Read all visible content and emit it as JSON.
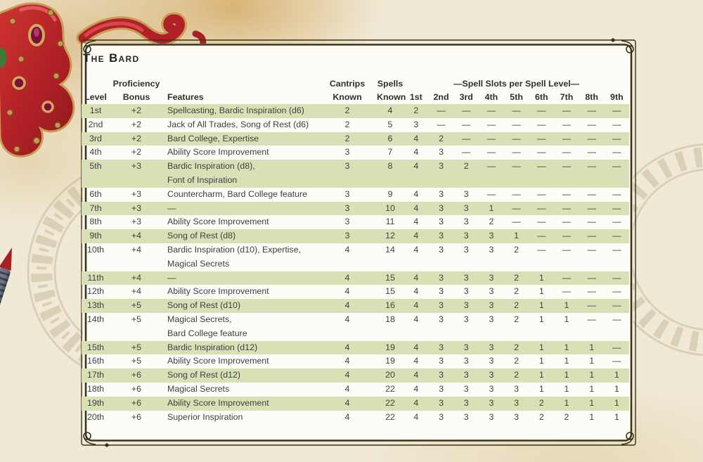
{
  "page": {
    "title": "The Bard"
  },
  "table": {
    "slots_banner": "—Spell Slots per Spell Level—",
    "columns": [
      {
        "id": "level",
        "align": "center",
        "lines": [
          "Level"
        ]
      },
      {
        "id": "prof",
        "align": "center",
        "lines": [
          "Proficiency",
          "Bonus"
        ]
      },
      {
        "id": "features",
        "align": "left",
        "lines": [
          "Features"
        ]
      },
      {
        "id": "cantrips",
        "align": "center",
        "lines": [
          "Cantrips",
          "Known"
        ]
      },
      {
        "id": "spells",
        "align": "center",
        "lines": [
          "Spells",
          "Known"
        ]
      },
      {
        "id": "slot1",
        "align": "center",
        "lines": [
          "1st"
        ]
      },
      {
        "id": "slot2",
        "align": "center",
        "lines": [
          "2nd"
        ]
      },
      {
        "id": "slot3",
        "align": "center",
        "lines": [
          "3rd"
        ]
      },
      {
        "id": "slot4",
        "align": "center",
        "lines": [
          "4th"
        ]
      },
      {
        "id": "slot5",
        "align": "center",
        "lines": [
          "5th"
        ]
      },
      {
        "id": "slot6",
        "align": "center",
        "lines": [
          "6th"
        ]
      },
      {
        "id": "slot7",
        "align": "center",
        "lines": [
          "7th"
        ]
      },
      {
        "id": "slot8",
        "align": "center",
        "lines": [
          "8th"
        ]
      },
      {
        "id": "slot9",
        "align": "center",
        "lines": [
          "9th"
        ]
      }
    ],
    "rows": [
      {
        "level": "1st",
        "prof": "+2",
        "features": [
          "Spellcasting, Bardic Inspiration (d6)"
        ],
        "cantrips": "2",
        "spells": "4",
        "slots": [
          "2",
          "—",
          "—",
          "—",
          "—",
          "—",
          "—",
          "—",
          "—"
        ]
      },
      {
        "level": "2nd",
        "prof": "+2",
        "features": [
          "Jack of All Trades, Song of Rest (d6)"
        ],
        "cantrips": "2",
        "spells": "5",
        "slots": [
          "3",
          "—",
          "—",
          "—",
          "—",
          "—",
          "—",
          "—",
          "—"
        ]
      },
      {
        "level": "3rd",
        "prof": "+2",
        "features": [
          "Bard College, Expertise"
        ],
        "cantrips": "2",
        "spells": "6",
        "slots": [
          "4",
          "2",
          "—",
          "—",
          "—",
          "—",
          "—",
          "—",
          "—"
        ]
      },
      {
        "level": "4th",
        "prof": "+2",
        "features": [
          "Ability Score Improvement"
        ],
        "cantrips": "3",
        "spells": "7",
        "slots": [
          "4",
          "3",
          "—",
          "—",
          "—",
          "—",
          "—",
          "—",
          "—"
        ]
      },
      {
        "level": "5th",
        "prof": "+3",
        "features": [
          "Bardic Inspiration (d8),",
          "Font of Inspiration"
        ],
        "cantrips": "3",
        "spells": "8",
        "slots": [
          "4",
          "3",
          "2",
          "—",
          "—",
          "—",
          "—",
          "—",
          "—"
        ]
      },
      {
        "level": "6th",
        "prof": "+3",
        "features": [
          "Countercharm, Bard College feature"
        ],
        "cantrips": "3",
        "spells": "9",
        "slots": [
          "4",
          "3",
          "3",
          "—",
          "—",
          "—",
          "—",
          "—",
          "—"
        ]
      },
      {
        "level": "7th",
        "prof": "+3",
        "features": [
          "—"
        ],
        "cantrips": "3",
        "spells": "10",
        "slots": [
          "4",
          "3",
          "3",
          "1",
          "—",
          "—",
          "—",
          "—",
          "—"
        ]
      },
      {
        "level": "8th",
        "prof": "+3",
        "features": [
          "Ability Score Improvement"
        ],
        "cantrips": "3",
        "spells": "11",
        "slots": [
          "4",
          "3",
          "3",
          "2",
          "—",
          "—",
          "—",
          "—",
          "—"
        ]
      },
      {
        "level": "9th",
        "prof": "+4",
        "features": [
          "Song of Rest (d8)"
        ],
        "cantrips": "3",
        "spells": "12",
        "slots": [
          "4",
          "3",
          "3",
          "3",
          "1",
          "—",
          "—",
          "—",
          "—"
        ]
      },
      {
        "level": "10th",
        "prof": "+4",
        "features": [
          "Bardic Inspiration (d10), Expertise,",
          "Magical Secrets"
        ],
        "cantrips": "4",
        "spells": "14",
        "slots": [
          "4",
          "3",
          "3",
          "3",
          "2",
          "—",
          "—",
          "—",
          "—"
        ]
      },
      {
        "level": "11th",
        "prof": "+4",
        "features": [
          "—"
        ],
        "cantrips": "4",
        "spells": "15",
        "slots": [
          "4",
          "3",
          "3",
          "3",
          "2",
          "1",
          "—",
          "—",
          "—"
        ]
      },
      {
        "level": "12th",
        "prof": "+4",
        "features": [
          "Ability Score Improvement"
        ],
        "cantrips": "4",
        "spells": "15",
        "slots": [
          "4",
          "3",
          "3",
          "3",
          "2",
          "1",
          "—",
          "—",
          "—"
        ]
      },
      {
        "level": "13th",
        "prof": "+5",
        "features": [
          "Song of Rest (d10)"
        ],
        "cantrips": "4",
        "spells": "16",
        "slots": [
          "4",
          "3",
          "3",
          "3",
          "2",
          "1",
          "1",
          "—",
          "—"
        ]
      },
      {
        "level": "14th",
        "prof": "+5",
        "features": [
          "Magical Secrets,",
          "Bard College feature"
        ],
        "cantrips": "4",
        "spells": "18",
        "slots": [
          "4",
          "3",
          "3",
          "3",
          "2",
          "1",
          "1",
          "—",
          "—"
        ]
      },
      {
        "level": "15th",
        "prof": "+5",
        "features": [
          "Bardic Inspiration (d12)"
        ],
        "cantrips": "4",
        "spells": "19",
        "slots": [
          "4",
          "3",
          "3",
          "3",
          "2",
          "1",
          "1",
          "1",
          "—"
        ]
      },
      {
        "level": "16th",
        "prof": "+5",
        "features": [
          "Ability Score Improvement"
        ],
        "cantrips": "4",
        "spells": "19",
        "slots": [
          "4",
          "3",
          "3",
          "3",
          "2",
          "1",
          "1",
          "1",
          "—"
        ]
      },
      {
        "level": "17th",
        "prof": "+6",
        "features": [
          "Song of Rest (d12)"
        ],
        "cantrips": "4",
        "spells": "20",
        "slots": [
          "4",
          "3",
          "3",
          "3",
          "2",
          "1",
          "1",
          "1",
          "1"
        ]
      },
      {
        "level": "18th",
        "prof": "+6",
        "features": [
          "Magical Secrets"
        ],
        "cantrips": "4",
        "spells": "22",
        "slots": [
          "4",
          "3",
          "3",
          "3",
          "3",
          "1",
          "1",
          "1",
          "1"
        ]
      },
      {
        "level": "19th",
        "prof": "+6",
        "features": [
          "Ability Score Improvement"
        ],
        "cantrips": "4",
        "spells": "22",
        "slots": [
          "4",
          "3",
          "3",
          "3",
          "3",
          "2",
          "1",
          "1",
          "1"
        ]
      },
      {
        "level": "20th",
        "prof": "+6",
        "features": [
          "Superior Inspiration"
        ],
        "cantrips": "4",
        "spells": "22",
        "slots": [
          "4",
          "3",
          "3",
          "3",
          "3",
          "2",
          "2",
          "1",
          "1"
        ]
      }
    ]
  },
  "colors": {
    "parchment": "#f0e9d5",
    "stain": "#d4aa64",
    "panel_white": "#fdfcf7",
    "row_highlight": "#d8e1b6",
    "frame_line": "#3b3316",
    "text": "#3e4145",
    "header_text": "#2d2f32",
    "mask_red": "#b7232a",
    "mask_gold": "#c89d55"
  },
  "decor": {
    "mask_icon": "carnival-mask",
    "handle_icon": "mask-handle-stick",
    "watermark_icon": "compass-rose-watermark"
  }
}
